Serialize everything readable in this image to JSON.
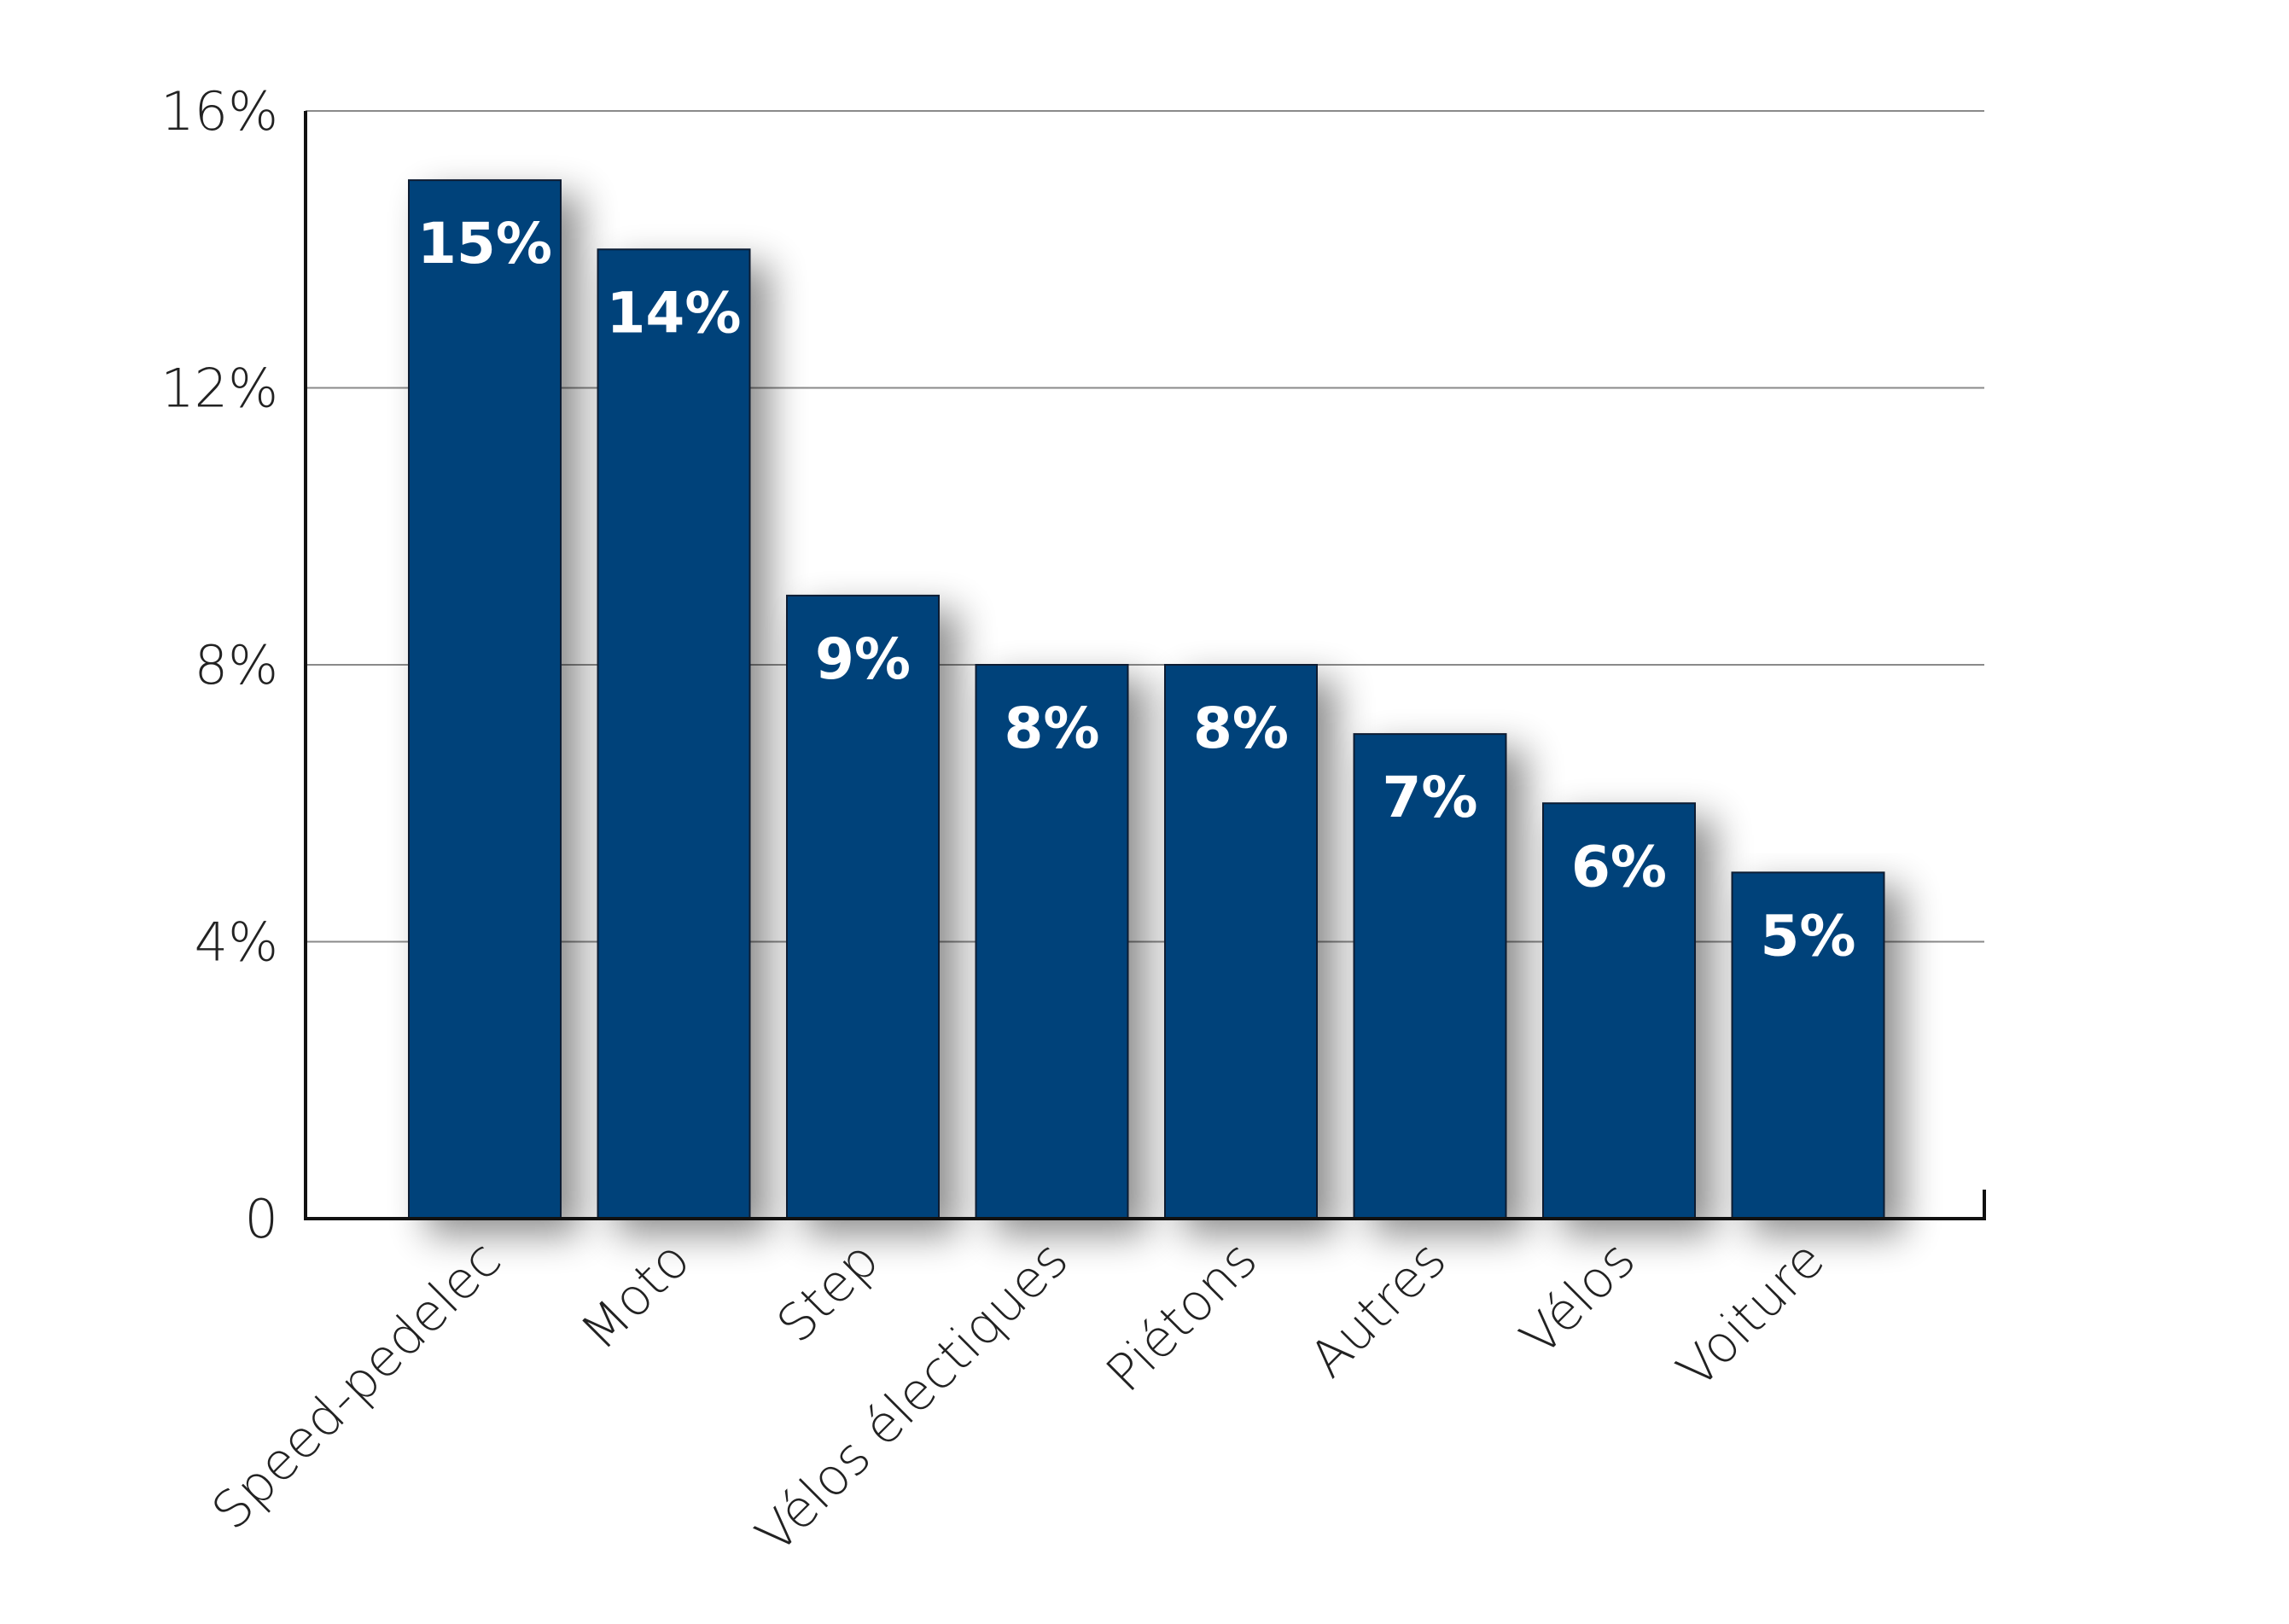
{
  "chart_data": {
    "type": "bar",
    "title": "",
    "xlabel": "",
    "ylabel": "",
    "categories": [
      "Speed-pedelec",
      "Moto",
      "Step",
      "Vélos électiques",
      "Piétons",
      "Autres",
      "Vélos",
      "Voiture"
    ],
    "values": [
      15,
      14,
      9,
      8,
      8,
      7,
      6,
      5
    ],
    "data_labels": [
      "15%",
      "14%",
      "9%",
      "8%",
      "8%",
      "7%",
      "6%",
      "5%"
    ],
    "yticks": [
      0,
      4,
      8,
      12,
      16
    ],
    "ytick_labels": [
      "0",
      "4%",
      "8%",
      "12%",
      "16%"
    ],
    "ylim": [
      0,
      16
    ],
    "grid": true,
    "legend": "none",
    "bar_color": "#00427A"
  }
}
